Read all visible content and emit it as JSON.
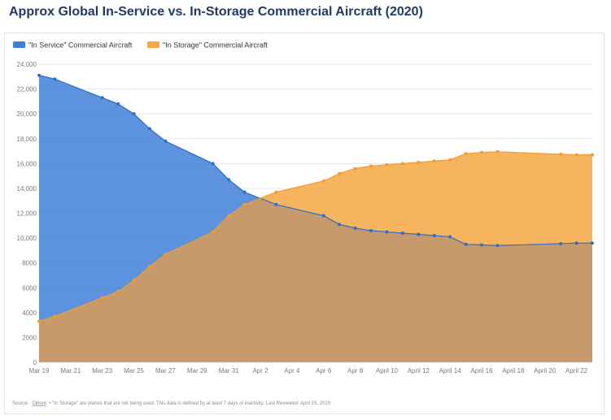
{
  "page": {
    "title": "Approx Global In-Service vs. In-Storage Commercial Aircraft (2020)"
  },
  "footer": {
    "source_label": "Source:",
    "source_link": "Cirium",
    "source_rest": "• \"In Storage\" are planes that are not being used. This data is defined by at least 7 days of inactivity. Last Reviewed: April 23, 2020"
  },
  "colors": {
    "in_service": "#3f7fd8",
    "in_storage": "#f5a742",
    "overlap": "#c79a6b",
    "grid": "#e6e6e6"
  },
  "chart_data": {
    "type": "area",
    "title": "Approx Global In-Service vs. In-Storage Commercial Aircraft (2020)",
    "legend_position": "top-left",
    "grid": true,
    "x_tick_labels": [
      "Mar 19",
      "Mar 21",
      "Mar 23",
      "Mar 25",
      "Mar 27",
      "Mar 29",
      "Mar 31",
      "Apr 2",
      "Apr 4",
      "Apr 6",
      "Apr 8",
      "April 10",
      "April 12",
      "April 14",
      "April 16",
      "April 18",
      "April 20",
      "April 22"
    ],
    "y_tick_labels": [
      "0",
      "2000",
      "4000",
      "6000",
      "8000",
      "10,000",
      "12,000",
      "14,000",
      "16,000",
      "18,000",
      "20,000",
      "22,000",
      "24,000"
    ],
    "ylim": [
      0,
      24000
    ],
    "series": [
      {
        "name": "\"In Service\" Commercial Aircraft",
        "points": [
          [
            "Mar 19",
            23100
          ],
          [
            "Mar 20",
            22800
          ],
          [
            "Mar 23",
            21300
          ],
          [
            "Mar 24",
            20800
          ],
          [
            "Mar 25",
            20000
          ],
          [
            "Mar 26",
            18800
          ],
          [
            "Mar 27",
            17800
          ],
          [
            "Mar 30",
            16000
          ],
          [
            "Mar 31",
            14700
          ],
          [
            "Apr 1",
            13700
          ],
          [
            "Apr 3",
            12700
          ],
          [
            "Apr 6",
            11800
          ],
          [
            "Apr 7",
            11100
          ],
          [
            "Apr 8",
            10800
          ],
          [
            "Apr 9",
            10600
          ],
          [
            "April 10",
            10500
          ],
          [
            "April 11",
            10400
          ],
          [
            "April 12",
            10300
          ],
          [
            "April 13",
            10200
          ],
          [
            "April 14",
            10100
          ],
          [
            "April 15",
            9500
          ],
          [
            "April 16",
            9450
          ],
          [
            "April 17",
            9400
          ],
          [
            "April 21",
            9550
          ],
          [
            "April 22",
            9600
          ],
          [
            "April 23",
            9600
          ]
        ]
      },
      {
        "name": "\"In Storage\" Commercial Aircraft",
        "points": [
          [
            "Mar 19",
            3300
          ],
          [
            "Mar 20",
            3700
          ],
          [
            "Mar 23",
            5200
          ],
          [
            "Mar 24",
            5700
          ],
          [
            "Mar 25",
            6600
          ],
          [
            "Mar 26",
            7700
          ],
          [
            "Mar 27",
            8700
          ],
          [
            "Mar 30",
            10500
          ],
          [
            "Mar 31",
            11800
          ],
          [
            "Apr 1",
            12700
          ],
          [
            "Apr 3",
            13700
          ],
          [
            "Apr 6",
            14600
          ],
          [
            "Apr 7",
            15200
          ],
          [
            "Apr 8",
            15600
          ],
          [
            "Apr 9",
            15800
          ],
          [
            "April 10",
            15900
          ],
          [
            "April 11",
            16000
          ],
          [
            "April 12",
            16100
          ],
          [
            "April 13",
            16200
          ],
          [
            "April 14",
            16300
          ],
          [
            "April 15",
            16800
          ],
          [
            "April 16",
            16900
          ],
          [
            "April 17",
            16950
          ],
          [
            "April 21",
            16750
          ],
          [
            "April 22",
            16700
          ],
          [
            "April 23",
            16700
          ]
        ]
      }
    ]
  }
}
